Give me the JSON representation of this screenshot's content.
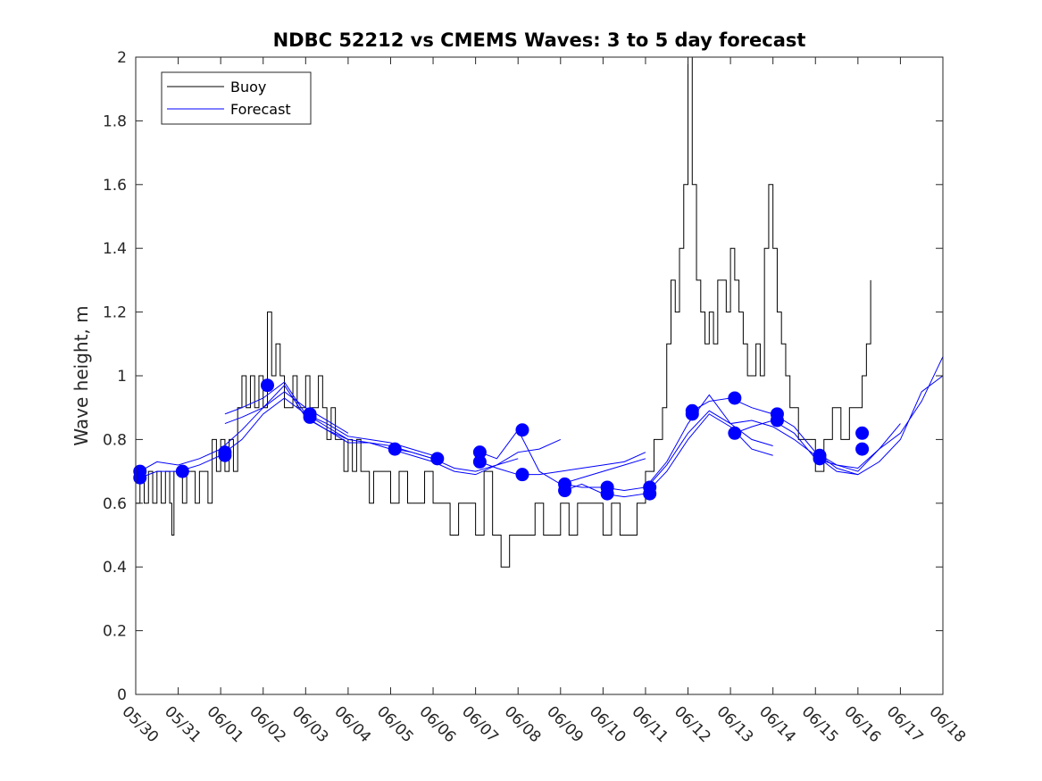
{
  "chart_data": {
    "type": "line",
    "title": "NDBC 52212 vs CMEMS Waves: 3 to 5 day forecast",
    "xlabel": "",
    "ylabel": "Wave height, m",
    "ylim": [
      0,
      2
    ],
    "yticks": [
      "0",
      "0.2",
      "0.4",
      "0.6",
      "0.8",
      "1",
      "1.2",
      "1.4",
      "1.6",
      "1.8",
      "2"
    ],
    "xticks": [
      "05/30",
      "05/31",
      "06/01",
      "06/02",
      "06/03",
      "06/04",
      "06/05",
      "06/06",
      "06/07",
      "06/08",
      "06/09",
      "06/10",
      "06/11",
      "06/12",
      "06/13",
      "06/14",
      "06/15",
      "06/16",
      "06/17",
      "06/18"
    ],
    "xlim_days": [
      0,
      19
    ],
    "legend_position": "top-left",
    "colors": {
      "buoy": "#000000",
      "forecast": "#0000ff"
    },
    "series": [
      {
        "name": "Buoy",
        "x": [
          0,
          0.1,
          0.2,
          0.3,
          0.4,
          0.5,
          0.6,
          0.7,
          0.8,
          0.85,
          0.9,
          1.0,
          1.1,
          1.2,
          1.3,
          1.4,
          1.5,
          1.6,
          1.7,
          1.8,
          1.9,
          2.0,
          2.1,
          2.2,
          2.3,
          2.4,
          2.5,
          2.6,
          2.7,
          2.8,
          2.9,
          3.0,
          3.1,
          3.2,
          3.3,
          3.4,
          3.5,
          3.6,
          3.7,
          3.8,
          3.9,
          4.0,
          4.1,
          4.2,
          4.3,
          4.4,
          4.5,
          4.6,
          4.7,
          4.8,
          4.9,
          5.0,
          5.1,
          5.2,
          5.3,
          5.4,
          5.5,
          5.6,
          5.8,
          6.0,
          6.2,
          6.4,
          6.6,
          6.8,
          7.0,
          7.2,
          7.4,
          7.6,
          7.8,
          8.0,
          8.2,
          8.4,
          8.6,
          8.8,
          9.0,
          9.2,
          9.4,
          9.6,
          9.8,
          10.0,
          10.2,
          10.4,
          10.6,
          10.8,
          11.0,
          11.2,
          11.4,
          11.6,
          11.8,
          12.0,
          12.2,
          12.4,
          12.5,
          12.6,
          12.7,
          12.8,
          12.9,
          13.0,
          13.1,
          13.2,
          13.3,
          13.4,
          13.5,
          13.6,
          13.7,
          13.8,
          13.9,
          14.0,
          14.1,
          14.2,
          14.3,
          14.4,
          14.5,
          14.6,
          14.7,
          14.8,
          14.9,
          15.0,
          15.1,
          15.2,
          15.3,
          15.4,
          15.5,
          15.6,
          15.8,
          16.0,
          16.2,
          16.4,
          16.6,
          16.8,
          17.0,
          17.1,
          17.2,
          17.3
        ],
        "values": [
          0.6,
          0.7,
          0.6,
          0.7,
          0.6,
          0.7,
          0.6,
          0.7,
          0.6,
          0.5,
          0.7,
          0.7,
          0.6,
          0.7,
          0.7,
          0.6,
          0.7,
          0.7,
          0.6,
          0.8,
          0.7,
          0.8,
          0.7,
          0.8,
          0.7,
          0.9,
          1.0,
          0.9,
          1.0,
          0.9,
          1.0,
          0.9,
          1.2,
          1.0,
          1.1,
          1.0,
          0.9,
          0.9,
          1.0,
          0.9,
          0.9,
          1.0,
          0.9,
          0.9,
          1.0,
          0.9,
          0.8,
          0.9,
          0.8,
          0.8,
          0.7,
          0.8,
          0.7,
          0.8,
          0.7,
          0.7,
          0.6,
          0.7,
          0.7,
          0.6,
          0.7,
          0.6,
          0.6,
          0.7,
          0.6,
          0.6,
          0.5,
          0.6,
          0.6,
          0.5,
          0.7,
          0.5,
          0.4,
          0.5,
          0.5,
          0.5,
          0.6,
          0.5,
          0.5,
          0.6,
          0.5,
          0.6,
          0.6,
          0.6,
          0.5,
          0.6,
          0.5,
          0.5,
          0.6,
          0.7,
          0.8,
          0.9,
          1.1,
          1.3,
          1.2,
          1.4,
          1.6,
          2.0,
          1.6,
          1.3,
          1.2,
          1.1,
          1.2,
          1.1,
          1.3,
          1.3,
          1.2,
          1.4,
          1.3,
          1.2,
          1.1,
          1.0,
          1.0,
          1.1,
          1.0,
          1.4,
          1.6,
          1.4,
          1.2,
          1.1,
          1.0,
          0.9,
          0.9,
          0.8,
          0.8,
          0.7,
          0.8,
          0.9,
          0.8,
          0.9,
          0.9,
          1.0,
          1.1,
          1.3
        ]
      },
      {
        "name": "Forecast",
        "x": [
          0,
          0.5,
          1.0,
          1.5,
          2.0,
          2.5,
          3.0,
          3.5,
          4.0,
          4.5,
          5.0,
          5.5,
          6.0,
          6.5,
          7.0,
          7.5,
          8.0,
          8.5,
          9.0,
          9.5,
          10.0,
          10.5,
          11.0,
          11.5,
          12.0,
          12.5,
          13.0,
          13.5,
          14.0,
          14.5,
          15.0,
          15.5,
          16.0,
          16.5,
          17.0,
          17.5,
          18.0,
          18.5,
          19.0
        ],
        "values": [
          0.69,
          0.72,
          0.71,
          0.73,
          0.75,
          0.81,
          0.87,
          0.92,
          0.9,
          0.85,
          0.81,
          0.79,
          0.79,
          0.76,
          0.74,
          0.7,
          0.69,
          0.7,
          0.69,
          0.69,
          0.7,
          0.67,
          0.65,
          0.64,
          0.63,
          0.7,
          0.78,
          0.85,
          0.9,
          0.87,
          0.85,
          0.82,
          0.76,
          0.71,
          0.69,
          0.75,
          0.78,
          0.88,
          1.05
        ]
      }
    ],
    "forecast_runs": [
      {
        "x": [
          0.1,
          0.5,
          1.0,
          1.5,
          2.0,
          2.5,
          3.0,
          3.5,
          4.0,
          4.5,
          5.0
        ],
        "values": [
          0.68,
          0.7,
          0.7,
          0.72,
          0.75,
          0.8,
          0.88,
          0.93,
          0.88,
          0.84,
          0.8
        ]
      },
      {
        "x": [
          0.1,
          0.5,
          1.0,
          1.5,
          2.0,
          2.5,
          3.0,
          3.5,
          4.0,
          4.5,
          5.0
        ],
        "values": [
          0.7,
          0.73,
          0.72,
          0.74,
          0.77,
          0.83,
          0.9,
          0.95,
          0.9,
          0.86,
          0.82
        ]
      },
      {
        "x": [
          2.1,
          2.5,
          3.0,
          3.5,
          4.0,
          4.5,
          5.0,
          5.5,
          6.0,
          6.5,
          7.0
        ],
        "values": [
          0.85,
          0.87,
          0.9,
          0.97,
          0.87,
          0.83,
          0.79,
          0.79,
          0.78,
          0.76,
          0.74
        ]
      },
      {
        "x": [
          2.1,
          2.5,
          3.0,
          3.5,
          4.0,
          4.5,
          5.0,
          5.5,
          6.0,
          6.5,
          7.0
        ],
        "values": [
          0.88,
          0.9,
          0.93,
          0.98,
          0.88,
          0.85,
          0.81,
          0.8,
          0.79,
          0.77,
          0.75
        ]
      },
      {
        "x": [
          4.1,
          4.5,
          5.0,
          5.5,
          6.0,
          6.5,
          7.0,
          7.5,
          8.0,
          8.5,
          9.0
        ],
        "values": [
          0.86,
          0.83,
          0.8,
          0.79,
          0.77,
          0.75,
          0.73,
          0.7,
          0.69,
          0.72,
          0.74
        ]
      },
      {
        "x": [
          6.1,
          6.5,
          7.0,
          7.5,
          8.0,
          8.5,
          9.0,
          9.5,
          10.0
        ],
        "values": [
          0.77,
          0.76,
          0.74,
          0.71,
          0.7,
          0.72,
          0.76,
          0.77,
          0.8
        ]
      },
      {
        "x": [
          8.1,
          8.5,
          9.0,
          9.5,
          10.0,
          10.5,
          11.0,
          11.5,
          12.0
        ],
        "values": [
          0.73,
          0.71,
          0.69,
          0.69,
          0.7,
          0.71,
          0.72,
          0.73,
          0.76
        ]
      },
      {
        "x": [
          8.1,
          8.5,
          9.0,
          9.5,
          10.0,
          10.5,
          11.0,
          11.5,
          12.0
        ],
        "values": [
          0.76,
          0.74,
          0.83,
          0.7,
          0.66,
          0.68,
          0.7,
          0.72,
          0.74
        ]
      },
      {
        "x": [
          10.1,
          10.5,
          11.0,
          11.5,
          12.0,
          12.5,
          13.0,
          13.5,
          14.0,
          14.5,
          15.0
        ],
        "values": [
          0.64,
          0.66,
          0.63,
          0.62,
          0.63,
          0.7,
          0.8,
          0.88,
          0.84,
          0.77,
          0.75
        ]
      },
      {
        "x": [
          10.1,
          10.5,
          11.0,
          11.5,
          12.0,
          12.5,
          13.0,
          13.5,
          14.0,
          14.5,
          15.0
        ],
        "values": [
          0.66,
          0.65,
          0.65,
          0.64,
          0.65,
          0.73,
          0.85,
          0.94,
          0.85,
          0.8,
          0.78
        ]
      },
      {
        "x": [
          12.1,
          12.5,
          13.0,
          13.5,
          14.0,
          14.5,
          15.0,
          15.5,
          16.0,
          16.5,
          17.0
        ],
        "values": [
          0.66,
          0.72,
          0.82,
          0.89,
          0.85,
          0.86,
          0.84,
          0.8,
          0.75,
          0.7,
          0.69
        ]
      },
      {
        "x": [
          13.1,
          13.5,
          14.0,
          14.5,
          15.0,
          15.5,
          16.0,
          16.5,
          17.0,
          17.5,
          18.0
        ],
        "values": [
          0.89,
          0.92,
          0.93,
          0.9,
          0.88,
          0.84,
          0.76,
          0.72,
          0.7,
          0.77,
          0.85
        ]
      },
      {
        "x": [
          14.1,
          14.5,
          15.0,
          15.5,
          16.0,
          16.5,
          17.0,
          17.5,
          18.0,
          18.5,
          19.0
        ],
        "values": [
          0.82,
          0.84,
          0.86,
          0.82,
          0.74,
          0.72,
          0.71,
          0.77,
          0.82,
          0.92,
          1.06
        ]
      },
      {
        "x": [
          16.1,
          16.5,
          17.0,
          17.5,
          18.0,
          18.5,
          19.0
        ],
        "values": [
          0.75,
          0.71,
          0.69,
          0.73,
          0.8,
          0.95,
          1.0
        ]
      }
    ],
    "forecast_markers": {
      "x": [
        0.1,
        0.1,
        1.1,
        2.1,
        2.1,
        3.1,
        4.1,
        4.1,
        6.1,
        7.1,
        8.1,
        8.1,
        9.1,
        9.1,
        10.1,
        10.1,
        11.1,
        11.1,
        12.1,
        12.1,
        13.1,
        13.1,
        14.1,
        14.1,
        15.1,
        15.1,
        16.1,
        16.1,
        17.1,
        17.1
      ],
      "values": [
        0.7,
        0.68,
        0.7,
        0.75,
        0.76,
        0.97,
        0.88,
        0.87,
        0.77,
        0.74,
        0.76,
        0.73,
        0.83,
        0.69,
        0.66,
        0.64,
        0.65,
        0.63,
        0.65,
        0.63,
        0.89,
        0.88,
        0.93,
        0.82,
        0.88,
        0.86,
        0.75,
        0.74,
        0.82,
        0.77
      ]
    }
  }
}
